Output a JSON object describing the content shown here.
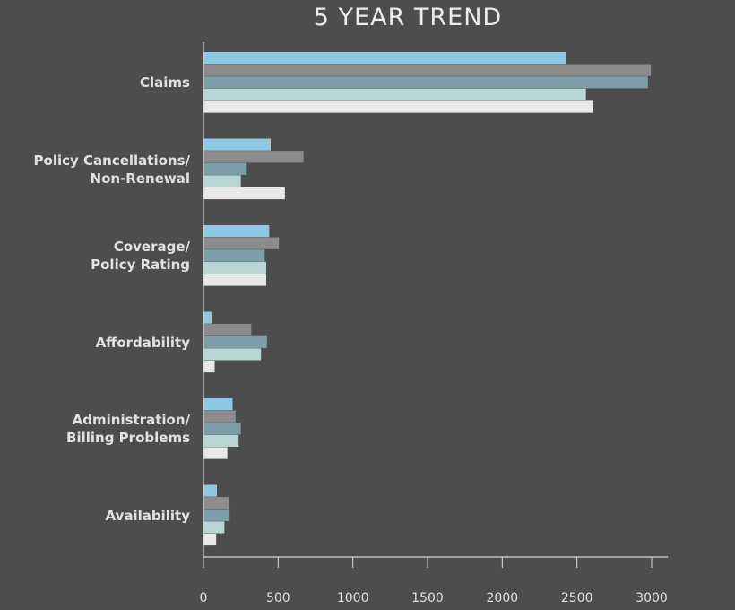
{
  "chart_data": {
    "type": "bar",
    "orientation": "horizontal",
    "title": "5 YEAR TREND",
    "xlabel": "",
    "ylabel": "",
    "xlim": [
      0,
      3000
    ],
    "x_ticks": [
      "0",
      "500",
      "1000",
      "1500",
      "2000",
      "2500",
      "3000"
    ],
    "grid": false,
    "legend": "none",
    "categories": [
      "Claims",
      "Policy Cancellations/\nNon-Renewal",
      "Coverage/\nPolicy Rating",
      "Affordability",
      "Administration/\nBilling Problems",
      "Availability"
    ],
    "series": [
      {
        "color": "#8ec8e2",
        "values": [
          2430,
          450,
          440,
          55,
          195,
          90
        ]
      },
      {
        "color": "#8c8c8c",
        "values": [
          2995,
          670,
          505,
          320,
          215,
          170
        ]
      },
      {
        "color": "#7c9ea6",
        "values": [
          2975,
          290,
          410,
          425,
          250,
          175
        ]
      },
      {
        "color": "#b9d5d5",
        "values": [
          2560,
          250,
          420,
          385,
          235,
          140
        ]
      },
      {
        "color": "#e8e8e8",
        "values": [
          2610,
          545,
          420,
          75,
          160,
          85
        ]
      }
    ],
    "axis_color": "#d9d9d9",
    "text_color": "#e2e2e2"
  }
}
